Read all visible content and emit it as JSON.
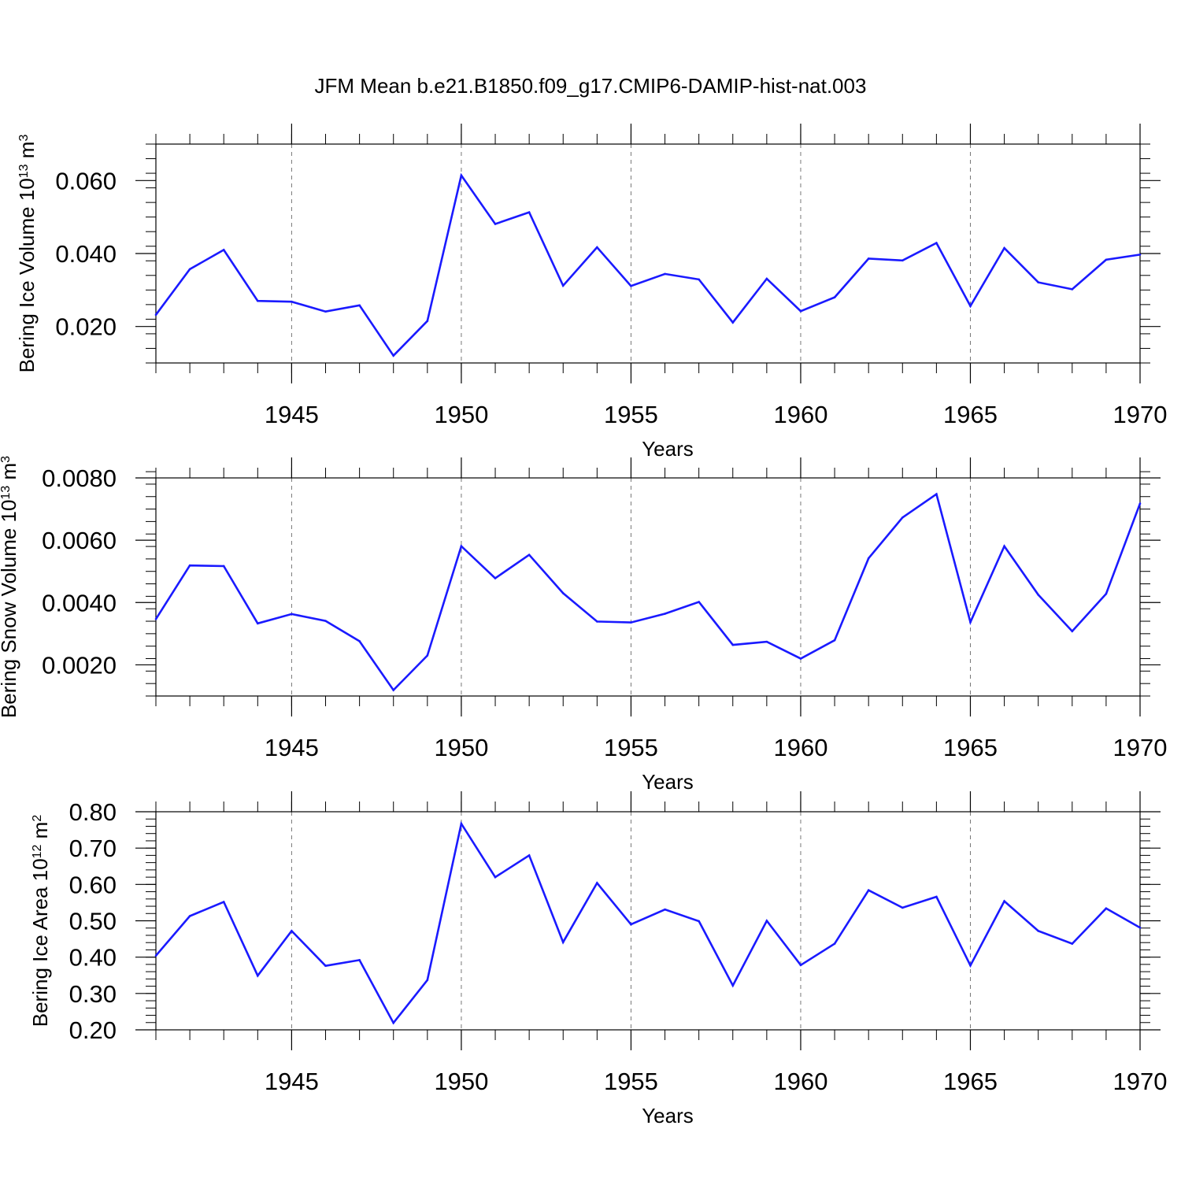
{
  "title": "JFM Mean b.e21.B1850.f09_g17.CMIP6-DAMIP-hist-nat.003",
  "colors": {
    "line": "#1a1aff",
    "axis": "#000000",
    "grid": "#777777"
  },
  "chart_data": [
    {
      "type": "line",
      "xlabel": "Years",
      "ylabel": {
        "text": "Bering Ice Volume 10",
        "sup": "13",
        "unit": " m",
        "unit_sup": "3"
      },
      "xlim": [
        1941,
        1970
      ],
      "ylim": [
        0.01,
        0.07
      ],
      "yticks": [
        0.02,
        0.04,
        0.06
      ],
      "ytick_labels": [
        "0.020",
        "0.040",
        "0.060"
      ],
      "yminor_step": 0.004,
      "xticks": [
        1945,
        1950,
        1955,
        1960,
        1965,
        1970
      ],
      "xtick_labels": [
        "1945",
        "1950",
        "1955",
        "1960",
        "1965",
        "1970"
      ],
      "grid": "vertical dashed at major x ticks",
      "x": [
        1941,
        1942,
        1943,
        1944,
        1945,
        1946,
        1947,
        1948,
        1949,
        1950,
        1951,
        1952,
        1953,
        1954,
        1955,
        1956,
        1957,
        1958,
        1959,
        1960,
        1961,
        1962,
        1963,
        1964,
        1965,
        1966,
        1967,
        1968,
        1969,
        1970
      ],
      "values": [
        0.0232,
        0.0357,
        0.041,
        0.027,
        0.0268,
        0.0241,
        0.0258,
        0.012,
        0.0215,
        0.0614,
        0.0481,
        0.0513,
        0.0312,
        0.0417,
        0.0311,
        0.0344,
        0.0329,
        0.0211,
        0.0331,
        0.0242,
        0.028,
        0.0386,
        0.0381,
        0.0429,
        0.0256,
        0.0415,
        0.0321,
        0.0302,
        0.0383,
        0.0397
      ]
    },
    {
      "type": "line",
      "xlabel": "Years",
      "ylabel": {
        "text": "Bering Snow Volume 10",
        "sup": "13",
        "unit": " m",
        "unit_sup": "3"
      },
      "xlim": [
        1941,
        1970
      ],
      "ylim": [
        0.001,
        0.008
      ],
      "yticks": [
        0.002,
        0.004,
        0.006,
        0.008
      ],
      "ytick_labels": [
        "0.0020",
        "0.0040",
        "0.0060",
        "0.0080"
      ],
      "yminor_step": 0.0004,
      "xticks": [
        1945,
        1950,
        1955,
        1960,
        1965,
        1970
      ],
      "xtick_labels": [
        "1945",
        "1950",
        "1955",
        "1960",
        "1965",
        "1970"
      ],
      "grid": "vertical dashed at major x ticks",
      "x": [
        1941,
        1942,
        1943,
        1944,
        1945,
        1946,
        1947,
        1948,
        1949,
        1950,
        1951,
        1952,
        1953,
        1954,
        1955,
        1956,
        1957,
        1958,
        1959,
        1960,
        1961,
        1962,
        1963,
        1964,
        1965,
        1966,
        1967,
        1968,
        1969,
        1970
      ],
      "values": [
        0.00347,
        0.00519,
        0.00517,
        0.00333,
        0.00363,
        0.00341,
        0.00276,
        0.00119,
        0.0023,
        0.00581,
        0.00478,
        0.00553,
        0.0043,
        0.00339,
        0.00336,
        0.00364,
        0.00402,
        0.00264,
        0.00274,
        0.0022,
        0.00279,
        0.00542,
        0.00673,
        0.00748,
        0.00337,
        0.00581,
        0.00425,
        0.00308,
        0.00428,
        0.00718
      ]
    },
    {
      "type": "line",
      "xlabel": "Years",
      "ylabel": {
        "text": "Bering Ice Area 10",
        "sup": "12",
        "unit": " m",
        "unit_sup": "2"
      },
      "xlim": [
        1941,
        1970
      ],
      "ylim": [
        0.2,
        0.8
      ],
      "yticks": [
        0.2,
        0.3,
        0.4,
        0.5,
        0.6,
        0.7,
        0.8
      ],
      "ytick_labels": [
        "0.20",
        "0.30",
        "0.40",
        "0.50",
        "0.60",
        "0.70",
        "0.80"
      ],
      "yminor_step": 0.02,
      "xticks": [
        1945,
        1950,
        1955,
        1960,
        1965,
        1970
      ],
      "xtick_labels": [
        "1945",
        "1950",
        "1955",
        "1960",
        "1965",
        "1970"
      ],
      "grid": "vertical dashed at major x ticks",
      "x": [
        1941,
        1942,
        1943,
        1944,
        1945,
        1946,
        1947,
        1948,
        1949,
        1950,
        1951,
        1952,
        1953,
        1954,
        1955,
        1956,
        1957,
        1958,
        1959,
        1960,
        1961,
        1962,
        1963,
        1964,
        1965,
        1966,
        1967,
        1968,
        1969,
        1970
      ],
      "values": [
        0.404,
        0.513,
        0.552,
        0.349,
        0.472,
        0.376,
        0.392,
        0.219,
        0.337,
        0.767,
        0.62,
        0.68,
        0.441,
        0.604,
        0.49,
        0.531,
        0.499,
        0.322,
        0.5,
        0.378,
        0.437,
        0.584,
        0.536,
        0.566,
        0.377,
        0.554,
        0.472,
        0.437,
        0.534,
        0.481
      ]
    }
  ]
}
